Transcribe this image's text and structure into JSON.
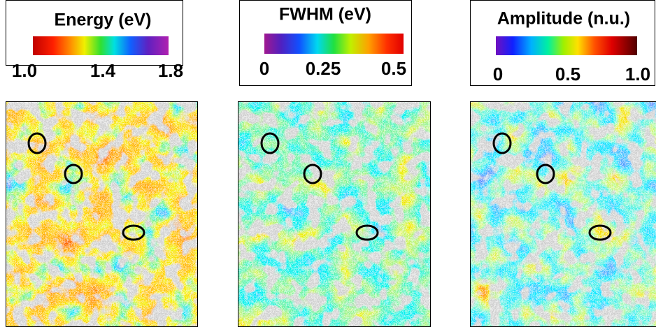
{
  "panels": [
    {
      "title": "Energy (eV)",
      "ticks": [
        "1.0",
        "1.4",
        "1.8"
      ]
    },
    {
      "title": "FWHM (eV)",
      "ticks": [
        "0",
        "0.25",
        "0.5"
      ]
    },
    {
      "title": "Amplitude (n.u.)",
      "ticks": [
        "0",
        "0.5",
        "1.0"
      ]
    }
  ]
}
